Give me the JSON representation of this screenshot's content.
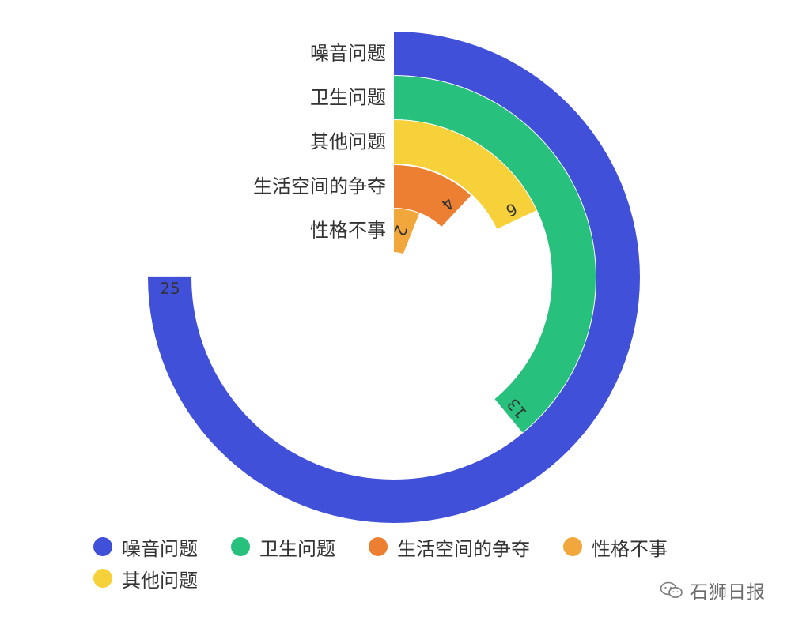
{
  "chart_data": {
    "type": "polar-bar",
    "series": [
      {
        "name": "噪音问题",
        "value": 25,
        "color": "#4150d8"
      },
      {
        "name": "卫生问题",
        "value": 13,
        "color": "#27c07d"
      },
      {
        "name": "其他问题",
        "value": 6,
        "color": "#f7d13a"
      },
      {
        "name": "生活空间的争夺",
        "value": 4,
        "color": "#ec7f31"
      },
      {
        "name": "性格不事",
        "value": 2,
        "color": "#f1a73b"
      }
    ],
    "max": 33.33
  },
  "legend": {
    "items": [
      {
        "label": "噪音问题",
        "color": "#4150d8"
      },
      {
        "label": "卫生问题",
        "color": "#27c07d"
      },
      {
        "label": "生活空间的争夺",
        "color": "#ec7f31"
      },
      {
        "label": "性格不事",
        "color": "#f1a73b"
      },
      {
        "label": "其他问题",
        "color": "#f7d13a"
      }
    ]
  },
  "watermark": {
    "text": "石狮日报",
    "icon": "wechat-icon"
  }
}
